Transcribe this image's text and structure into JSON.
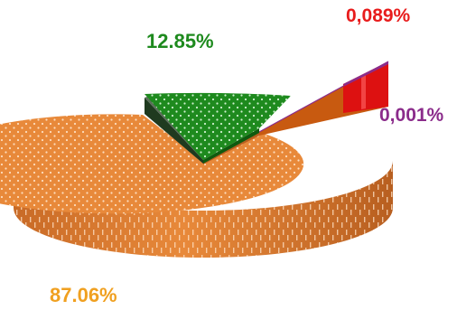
{
  "chart_data": {
    "type": "pie",
    "style": "3d-exploded",
    "title": "",
    "slices": [
      {
        "label": "87.06%",
        "value": 87.06,
        "color": "#E8893A"
      },
      {
        "label": "12.85%",
        "value": 12.85,
        "color": "#1E8A1E"
      },
      {
        "label": "0,089%",
        "value": 0.089,
        "color": "#DD1111"
      },
      {
        "label": "0,001%",
        "value": 0.001,
        "color": "#8B2C8B"
      }
    ],
    "legend": "none"
  },
  "labels": {
    "orange": "87.06%",
    "green": "12.85%",
    "red": "0,089%",
    "purple": "0,001%"
  },
  "colors": {
    "orange_label": "#F0A020",
    "green_label": "#1E8A1E",
    "red_label": "#E81C1C",
    "purple_label": "#8B2C8B"
  }
}
